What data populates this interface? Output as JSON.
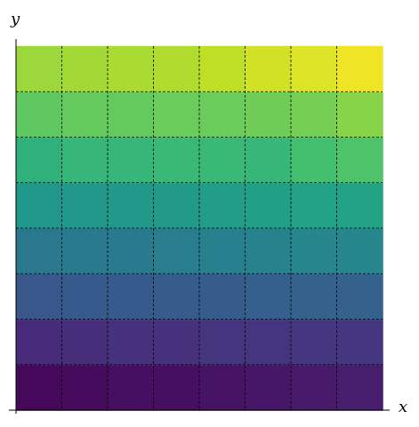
{
  "chart_data": {
    "type": "heatmap",
    "x_label": "x",
    "y_label": "y",
    "colormap": "viridis",
    "zlim": [
      0,
      1
    ],
    "xlim": [
      0,
      8
    ],
    "ylim": [
      0,
      8
    ],
    "xgrid": [
      1,
      2,
      3,
      4,
      5,
      6,
      7
    ],
    "ygrid": [
      1,
      2,
      3,
      4,
      5,
      6,
      7
    ],
    "grid": true,
    "z": [
      [
        0.02,
        0.03,
        0.04,
        0.04,
        0.05,
        0.06,
        0.07,
        0.08
      ],
      [
        0.12,
        0.13,
        0.14,
        0.14,
        0.15,
        0.15,
        0.16,
        0.16
      ],
      [
        0.27,
        0.28,
        0.28,
        0.29,
        0.29,
        0.3,
        0.31,
        0.31
      ],
      [
        0.4,
        0.41,
        0.41,
        0.42,
        0.43,
        0.44,
        0.45,
        0.46
      ],
      [
        0.52,
        0.53,
        0.53,
        0.54,
        0.55,
        0.56,
        0.57,
        0.58
      ],
      [
        0.64,
        0.66,
        0.66,
        0.67,
        0.67,
        0.66,
        0.7,
        0.72
      ],
      [
        0.75,
        0.76,
        0.76,
        0.77,
        0.77,
        0.78,
        0.79,
        0.82
      ],
      [
        0.85,
        0.86,
        0.87,
        0.88,
        0.9,
        0.93,
        0.95,
        0.98
      ]
    ]
  }
}
